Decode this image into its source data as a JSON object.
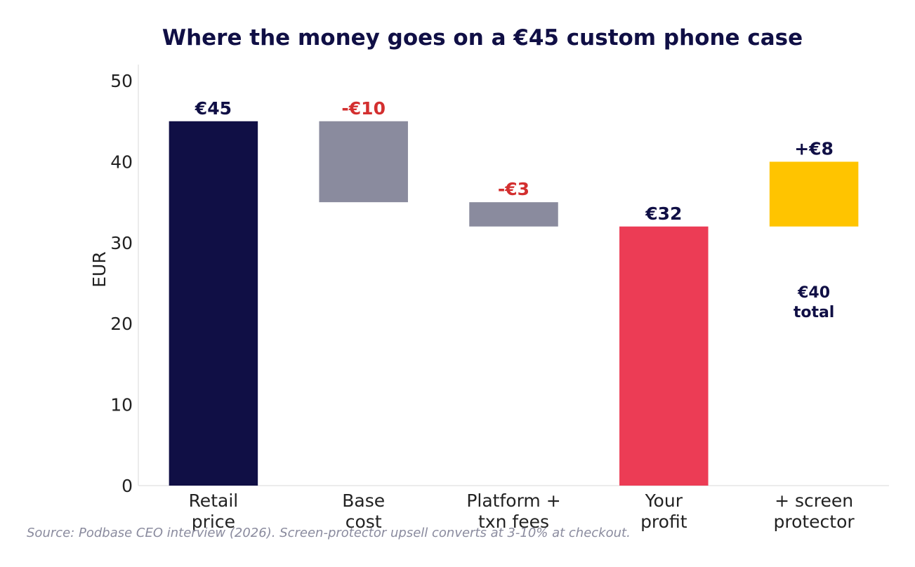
{
  "chart_data": {
    "type": "bar",
    "subtype": "waterfall",
    "title": "Where the money goes on a €45 custom phone case",
    "xlabel": "",
    "ylabel": "EUR",
    "ylim": [
      0,
      52
    ],
    "yticks": [
      0,
      10,
      20,
      30,
      40,
      50
    ],
    "grid": false,
    "categories": [
      [
        "Retail",
        "price"
      ],
      [
        "Base",
        "cost"
      ],
      [
        "Platform +",
        "txn fees"
      ],
      [
        "Your",
        "profit"
      ],
      [
        "+ screen",
        "protector"
      ]
    ],
    "bars": [
      {
        "bottom": 0,
        "top": 45,
        "label": "€45",
        "color": "#100f45",
        "label_color": "#100f45"
      },
      {
        "bottom": 35,
        "top": 45,
        "label": "-€10",
        "color": "#8a8b9e",
        "label_color": "#d32f2f"
      },
      {
        "bottom": 32,
        "top": 35,
        "label": "-€3",
        "color": "#8a8b9e",
        "label_color": "#d32f2f"
      },
      {
        "bottom": 0,
        "top": 32,
        "label": "€32",
        "color": "#ec3c55",
        "label_color": "#100f45"
      },
      {
        "bottom": 32,
        "top": 40,
        "label": "+€8",
        "color": "#ffc400",
        "label_color": "#100f45"
      }
    ],
    "annotation": {
      "lines": [
        "€40",
        "total"
      ],
      "category_index": 4,
      "y": 22,
      "color": "#100f45"
    }
  },
  "source_note": "Source: Podbase CEO interview (2026). Screen-protector upsell converts at 3-10% at checkout.",
  "colors": {
    "title": "#100f45",
    "text": "#222222",
    "axis": "#e6e6e6",
    "source": "#8a8b9e"
  }
}
